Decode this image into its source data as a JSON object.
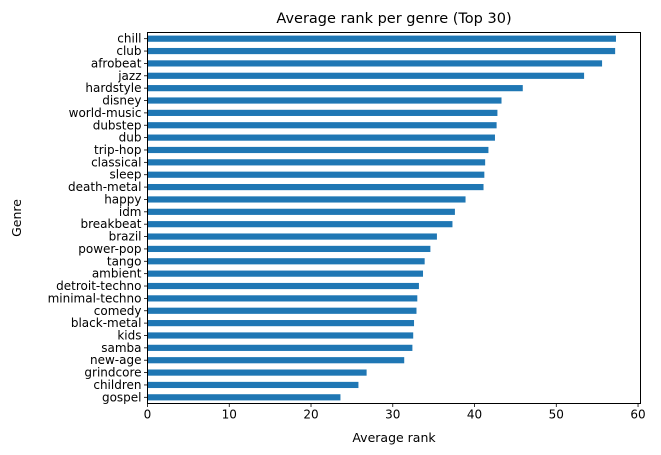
{
  "chart_data": {
    "type": "bar",
    "orientation": "horizontal",
    "title": "Average rank per genre (Top 30)",
    "xlabel": "Average rank",
    "ylabel": "Genre",
    "xlim": [
      0,
      60.3
    ],
    "xticks": [
      0,
      10,
      20,
      30,
      40,
      50,
      60
    ],
    "grid": false,
    "legend": "none",
    "bar_color": "#1f77b4",
    "categories": [
      "chill",
      "club",
      "afrobeat",
      "jazz",
      "hardstyle",
      "disney",
      "world-music",
      "dubstep",
      "dub",
      "trip-hop",
      "classical",
      "sleep",
      "death-metal",
      "happy",
      "idm",
      "breakbeat",
      "brazil",
      "power-pop",
      "tango",
      "ambient",
      "detroit-techno",
      "minimal-techno",
      "comedy",
      "black-metal",
      "kids",
      "samba",
      "new-age",
      "grindcore",
      "children",
      "gospel"
    ],
    "values": [
      57.3,
      57.2,
      55.6,
      53.4,
      45.9,
      43.3,
      42.8,
      42.7,
      42.5,
      41.7,
      41.3,
      41.2,
      41.1,
      38.9,
      37.6,
      37.3,
      35.4,
      34.6,
      33.9,
      33.7,
      33.2,
      33.0,
      32.9,
      32.6,
      32.5,
      32.4,
      31.4,
      26.8,
      25.8,
      23.6
    ]
  }
}
